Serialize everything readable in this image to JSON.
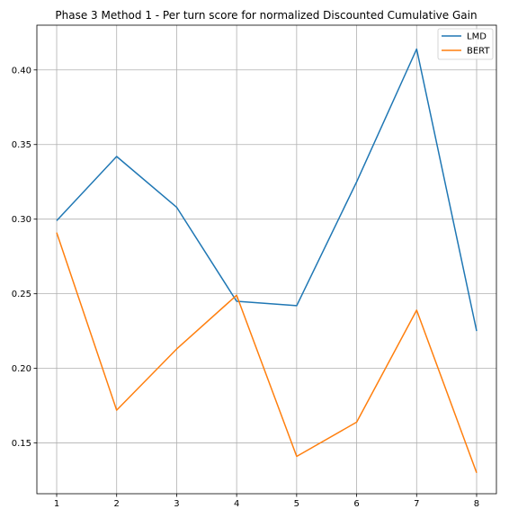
{
  "chart_data": {
    "type": "line",
    "title": "Phase 3 Method 1 - Per turn score for normalized Discounted Cumulative Gain",
    "xlabel": "",
    "ylabel": "",
    "x": [
      1,
      2,
      3,
      4,
      5,
      6,
      7,
      8
    ],
    "x_ticks": [
      "1",
      "2",
      "3",
      "4",
      "5",
      "6",
      "7",
      "8"
    ],
    "y_ticks": [
      "0.15",
      "0.20",
      "0.25",
      "0.30",
      "0.35",
      "0.40"
    ],
    "y_tick_values": [
      0.15,
      0.2,
      0.25,
      0.3,
      0.35,
      0.4
    ],
    "xlim": [
      0.67,
      8.33
    ],
    "ylim": [
      0.116,
      0.43
    ],
    "grid": true,
    "legend_position": "top-right",
    "series": [
      {
        "name": "LMD",
        "color": "#1f77b4",
        "values": [
          0.299,
          0.342,
          0.308,
          0.245,
          0.242,
          0.325,
          0.414,
          0.225
        ]
      },
      {
        "name": "BERT",
        "color": "#ff7f0e",
        "values": [
          0.291,
          0.172,
          0.213,
          0.249,
          0.141,
          0.164,
          0.239,
          0.13
        ]
      }
    ]
  }
}
